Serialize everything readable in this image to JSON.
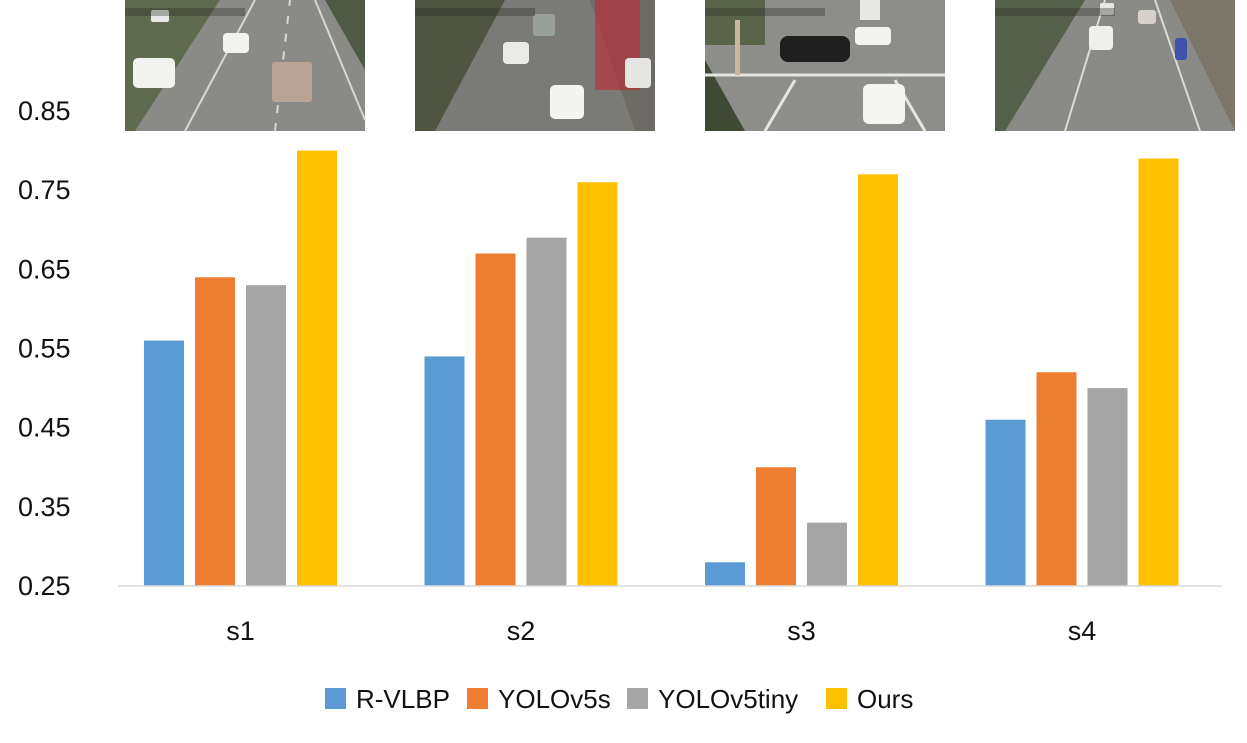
{
  "chart_data": {
    "type": "bar",
    "title": "",
    "xlabel": "",
    "ylabel": "",
    "categories": [
      "s1",
      "s2",
      "s3",
      "s4"
    ],
    "ylim": [
      0.25,
      0.85
    ],
    "yticks": [
      0.25,
      0.35,
      0.45,
      0.55,
      0.65,
      0.75,
      0.85
    ],
    "ytick_labels": [
      "0.25",
      "0.35",
      "0.45",
      "0.55",
      "0.65",
      "0.75",
      "0.85"
    ],
    "grid": false,
    "legend_position": "bottom",
    "series": [
      {
        "name": "R-VLBP",
        "color": "#5b9bd5",
        "values": [
          0.56,
          0.54,
          0.28,
          0.46
        ]
      },
      {
        "name": "YOLOv5s",
        "color": "#ed7d31",
        "values": [
          0.64,
          0.67,
          0.4,
          0.52
        ]
      },
      {
        "name": "YOLOv5tiny",
        "color": "#a5a5a5",
        "values": [
          0.63,
          0.69,
          0.33,
          0.5
        ]
      },
      {
        "name": "Ours",
        "color": "#ffc000",
        "values": [
          0.8,
          0.76,
          0.77,
          0.79
        ]
      }
    ],
    "scene_images": [
      "highway-scene",
      "busy-street-scene",
      "intersection-scene",
      "urban-road-scene"
    ]
  }
}
